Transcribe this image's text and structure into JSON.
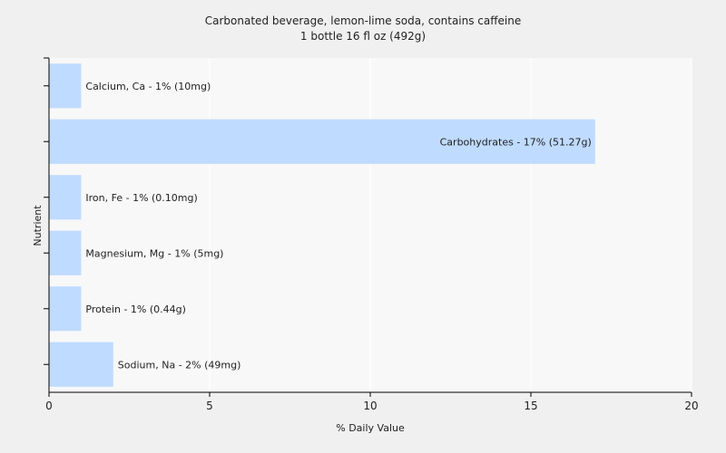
{
  "title": "Carbonated beverage, lemon-lime soda, contains caffeine",
  "subtitle": "1 bottle 16 fl oz (492g)",
  "colors": {
    "background": "#f0f0f0",
    "plot_background": "#f8f8f8",
    "bar": "#bfdbff",
    "gridline": "#ffffff",
    "axis": "#000000",
    "text": "#222222"
  },
  "chart_data": {
    "type": "bar",
    "orientation": "horizontal",
    "title": "Carbonated beverage, lemon-lime soda, contains caffeine",
    "subtitle": "1 bottle 16 fl oz (492g)",
    "xlabel": "% Daily Value",
    "ylabel": "Nutrient",
    "xlim": [
      0,
      20
    ],
    "xticks": [
      0,
      5,
      10,
      15,
      20
    ],
    "grid": true,
    "categories": [
      "Calcium, Ca",
      "Carbohydrates",
      "Iron, Fe",
      "Magnesium, Mg",
      "Protein",
      "Sodium, Na"
    ],
    "values": [
      1,
      17,
      1,
      1,
      1,
      2
    ],
    "labels": [
      "Calcium, Ca - 1% (10mg)",
      "Carbohydrates - 17% (51.27g)",
      "Iron, Fe - 1% (0.10mg)",
      "Magnesium, Mg - 1% (5mg)",
      "Protein - 1% (0.44g)",
      "Sodium, Na - 2% (49mg)"
    ]
  }
}
